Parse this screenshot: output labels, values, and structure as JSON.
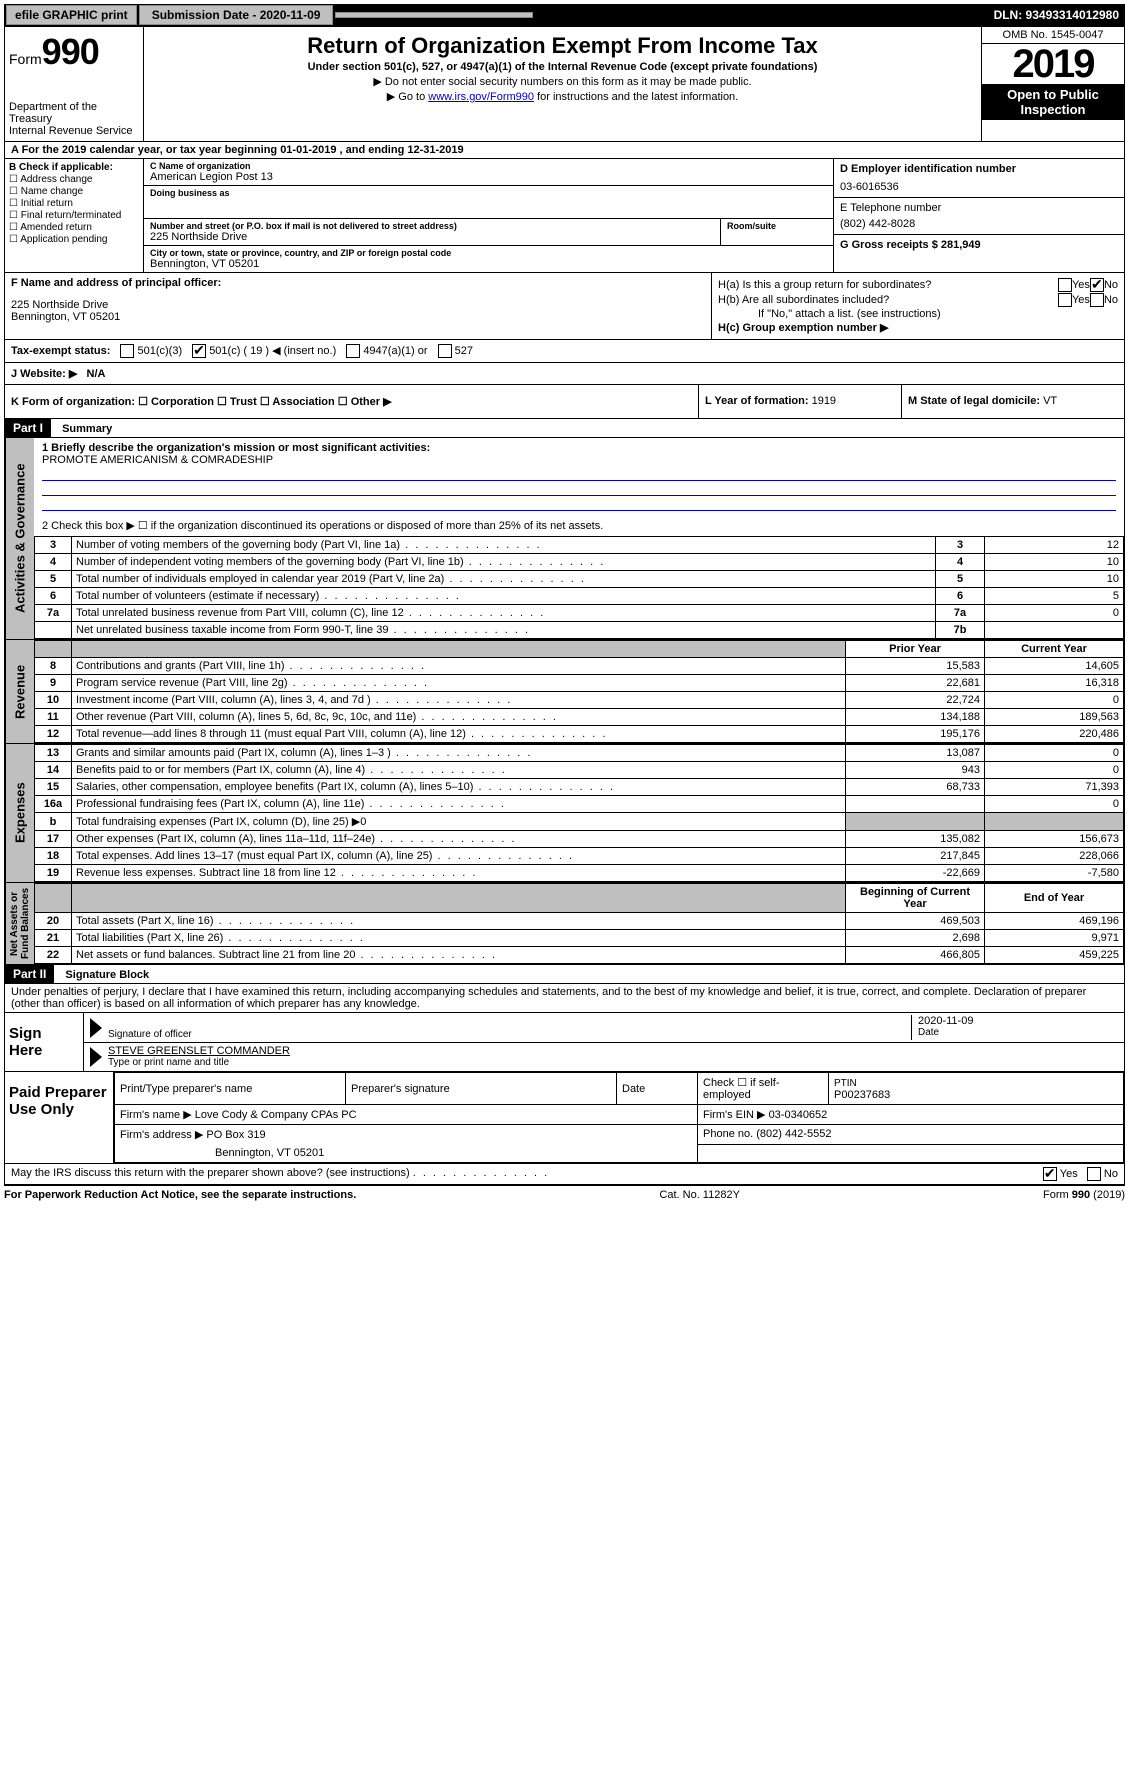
{
  "topbar": {
    "efile": "efile GRAPHIC print",
    "submission_label": "Submission Date - 2020-11-09",
    "dln": "DLN: 93493314012980"
  },
  "header": {
    "form_prefix": "Form",
    "form_number": "990",
    "dept": "Department of the Treasury",
    "irs": "Internal Revenue Service",
    "title": "Return of Organization Exempt From Income Tax",
    "subtitle": "Under section 501(c), 527, or 4947(a)(1) of the Internal Revenue Code (except private foundations)",
    "note1": "▶ Do not enter social security numbers on this form as it may be made public.",
    "note2_pre": "▶ Go to ",
    "note2_link": "www.irs.gov/Form990",
    "note2_post": " for instructions and the latest information.",
    "omb": "OMB No. 1545-0047",
    "year": "2019",
    "open": "Open to Public Inspection"
  },
  "row_a": "A  For the 2019 calendar year, or tax year beginning 01-01-2019     , and ending 12-31-2019",
  "col_b": {
    "title": "B Check if applicable:",
    "items": [
      "Address change",
      "Name change",
      "Initial return",
      "Final return/terminated",
      "Amended return",
      "Application pending"
    ]
  },
  "col_c": {
    "name_lbl": "C Name of organization",
    "name": "American Legion Post 13",
    "dba_lbl": "Doing business as",
    "addr_lbl": "Number and street (or P.O. box if mail is not delivered to street address)",
    "addr": "225 Northside Drive",
    "room_lbl": "Room/suite",
    "city_lbl": "City or town, state or province, country, and ZIP or foreign postal code",
    "city": "Bennington, VT  05201"
  },
  "col_de": {
    "d_lbl": "D Employer identification number",
    "d_val": "03-6016536",
    "e_lbl": "E Telephone number",
    "e_val": "(802) 442-8028",
    "g_lbl": "G Gross receipts $ 281,949"
  },
  "col_f": {
    "lbl": "F  Name and address of principal officer:",
    "line1": "225 Northside Drive",
    "line2": "Bennington, VT  05201"
  },
  "col_h": {
    "ha": "H(a)  Is this a group return for subordinates?",
    "hb": "H(b)  Are all subordinates included?",
    "hb_note": "If \"No,\" attach a list. (see instructions)",
    "hc": "H(c)  Group exemption number ▶"
  },
  "status": {
    "lbl": "Tax-exempt status:",
    "opts": [
      "501(c)(3)",
      "501(c) ( 19 ) ◀ (insert no.)",
      "4947(a)(1) or",
      "527"
    ]
  },
  "website": {
    "lbl": "J   Website: ▶",
    "val": "N/A"
  },
  "klm": {
    "k": "K Form of organization:    ☐ Corporation   ☐ Trust   ☐ Association   ☐ Other ▶",
    "l_lbl": "L Year of formation:",
    "l_val": "1919",
    "m_lbl": "M State of legal domicile:",
    "m_val": "VT"
  },
  "part1": {
    "hdr": "Part I",
    "title": "Summary",
    "mission_lbl": "1  Briefly describe the organization's mission or most significant activities:",
    "mission": "PROMOTE AMERICANISM & COMRADESHIP",
    "line2": "2    Check this box ▶ ☐  if the organization discontinued its operations or disposed of more than 25% of its net assets."
  },
  "gov_rows": [
    {
      "n": "3",
      "d": "Number of voting members of the governing body (Part VI, line 1a)",
      "b": "3",
      "v": "12"
    },
    {
      "n": "4",
      "d": "Number of independent voting members of the governing body (Part VI, line 1b)",
      "b": "4",
      "v": "10"
    },
    {
      "n": "5",
      "d": "Total number of individuals employed in calendar year 2019 (Part V, line 2a)",
      "b": "5",
      "v": "10"
    },
    {
      "n": "6",
      "d": "Total number of volunteers (estimate if necessary)",
      "b": "6",
      "v": "5"
    },
    {
      "n": "7a",
      "d": "Total unrelated business revenue from Part VIII, column (C), line 12",
      "b": "7a",
      "v": "0"
    },
    {
      "n": "",
      "d": "Net unrelated business taxable income from Form 990-T, line 39",
      "b": "7b",
      "v": ""
    }
  ],
  "rev_hdr": {
    "py": "Prior Year",
    "cy": "Current Year"
  },
  "rev_rows": [
    {
      "n": "8",
      "d": "Contributions and grants (Part VIII, line 1h)",
      "py": "15,583",
      "cy": "14,605"
    },
    {
      "n": "9",
      "d": "Program service revenue (Part VIII, line 2g)",
      "py": "22,681",
      "cy": "16,318"
    },
    {
      "n": "10",
      "d": "Investment income (Part VIII, column (A), lines 3, 4, and 7d )",
      "py": "22,724",
      "cy": "0"
    },
    {
      "n": "11",
      "d": "Other revenue (Part VIII, column (A), lines 5, 6d, 8c, 9c, 10c, and 11e)",
      "py": "134,188",
      "cy": "189,563"
    },
    {
      "n": "12",
      "d": "Total revenue—add lines 8 through 11 (must equal Part VIII, column (A), line 12)",
      "py": "195,176",
      "cy": "220,486"
    }
  ],
  "exp_rows": [
    {
      "n": "13",
      "d": "Grants and similar amounts paid (Part IX, column (A), lines 1–3 )",
      "py": "13,087",
      "cy": "0"
    },
    {
      "n": "14",
      "d": "Benefits paid to or for members (Part IX, column (A), line 4)",
      "py": "943",
      "cy": "0"
    },
    {
      "n": "15",
      "d": "Salaries, other compensation, employee benefits (Part IX, column (A), lines 5–10)",
      "py": "68,733",
      "cy": "71,393"
    },
    {
      "n": "16a",
      "d": "Professional fundraising fees (Part IX, column (A), line 11e)",
      "py": "",
      "cy": "0"
    },
    {
      "n": "b",
      "d": "Total fundraising expenses (Part IX, column (D), line 25) ▶0",
      "py": "",
      "cy": "",
      "shade": true
    },
    {
      "n": "17",
      "d": "Other expenses (Part IX, column (A), lines 11a–11d, 11f–24e)",
      "py": "135,082",
      "cy": "156,673"
    },
    {
      "n": "18",
      "d": "Total expenses. Add lines 13–17 (must equal Part IX, column (A), line 25)",
      "py": "217,845",
      "cy": "228,066"
    },
    {
      "n": "19",
      "d": "Revenue less expenses. Subtract line 18 from line 12",
      "py": "-22,669",
      "cy": "-7,580"
    }
  ],
  "net_hdr": {
    "b": "Beginning of Current Year",
    "e": "End of Year"
  },
  "net_rows": [
    {
      "n": "20",
      "d": "Total assets (Part X, line 16)",
      "py": "469,503",
      "cy": "469,196"
    },
    {
      "n": "21",
      "d": "Total liabilities (Part X, line 26)",
      "py": "2,698",
      "cy": "9,971"
    },
    {
      "n": "22",
      "d": "Net assets or fund balances. Subtract line 21 from line 20",
      "py": "466,805",
      "cy": "459,225"
    }
  ],
  "part2": {
    "hdr": "Part II",
    "title": "Signature Block",
    "perjury": "Under penalties of perjury, I declare that I have examined this return, including accompanying schedules and statements, and to the best of my knowledge and belief, it is true, correct, and complete. Declaration of preparer (other than officer) is based on all information of which preparer has any knowledge."
  },
  "sign": {
    "here": "Sign Here",
    "sig_lbl": "Signature of officer",
    "date_lbl": "Date",
    "date": "2020-11-09",
    "name": "STEVE GREENSLET COMMANDER",
    "name_lbl": "Type or print name and title"
  },
  "prep": {
    "title": "Paid Preparer Use Only",
    "col1": "Print/Type preparer's name",
    "col2": "Preparer's signature",
    "col3": "Date",
    "col4_a": "Check ☐ if self-employed",
    "col5_lbl": "PTIN",
    "col5": "P00237683",
    "firm_name_lbl": "Firm's name    ▶",
    "firm_name": "Love Cody & Company CPAs PC",
    "firm_ein_lbl": "Firm's EIN ▶",
    "firm_ein": "03-0340652",
    "firm_addr_lbl": "Firm's address ▶",
    "firm_addr1": "PO Box 319",
    "firm_addr2": "Bennington, VT  05201",
    "phone_lbl": "Phone no.",
    "phone": "(802) 442-5552"
  },
  "discuss": "May the IRS discuss this return with the preparer shown above? (see instructions)",
  "footer": {
    "left": "For Paperwork Reduction Act Notice, see the separate instructions.",
    "mid": "Cat. No. 11282Y",
    "right": "Form 990 (2019)"
  }
}
